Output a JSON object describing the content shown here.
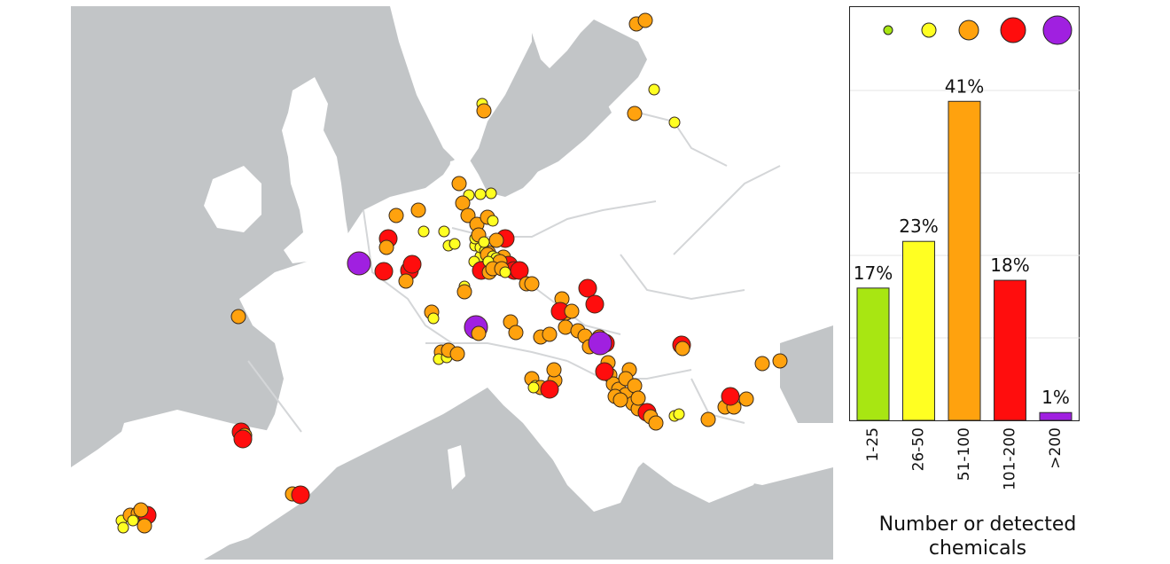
{
  "chart_data": {
    "type": "bar",
    "categories": [
      "1-25",
      "26-50",
      "51-100",
      "101-200",
      ">200"
    ],
    "values": [
      17,
      23,
      41,
      18,
      1
    ],
    "value_labels": [
      "17%",
      "23%",
      "41%",
      "18%",
      "1%"
    ],
    "colors": [
      "#a8e612",
      "#ffff22",
      "#ffa20e",
      "#ff0d0d",
      "#a020e0"
    ],
    "title": "",
    "xlabel": "Number or detected chemicals",
    "ylabel": "",
    "ylim": [
      0,
      44
    ],
    "grid": true,
    "legend": "top",
    "legend_marker_colors": [
      "#a8e612",
      "#ffff22",
      "#ffa20e",
      "#ff0d0d",
      "#a020e0"
    ]
  },
  "map": {
    "land_color": "#ffffff",
    "sea_color": "#c2c5c7",
    "border_color": "#d4d6d8",
    "marker_outline": "#3a2a1a"
  }
}
